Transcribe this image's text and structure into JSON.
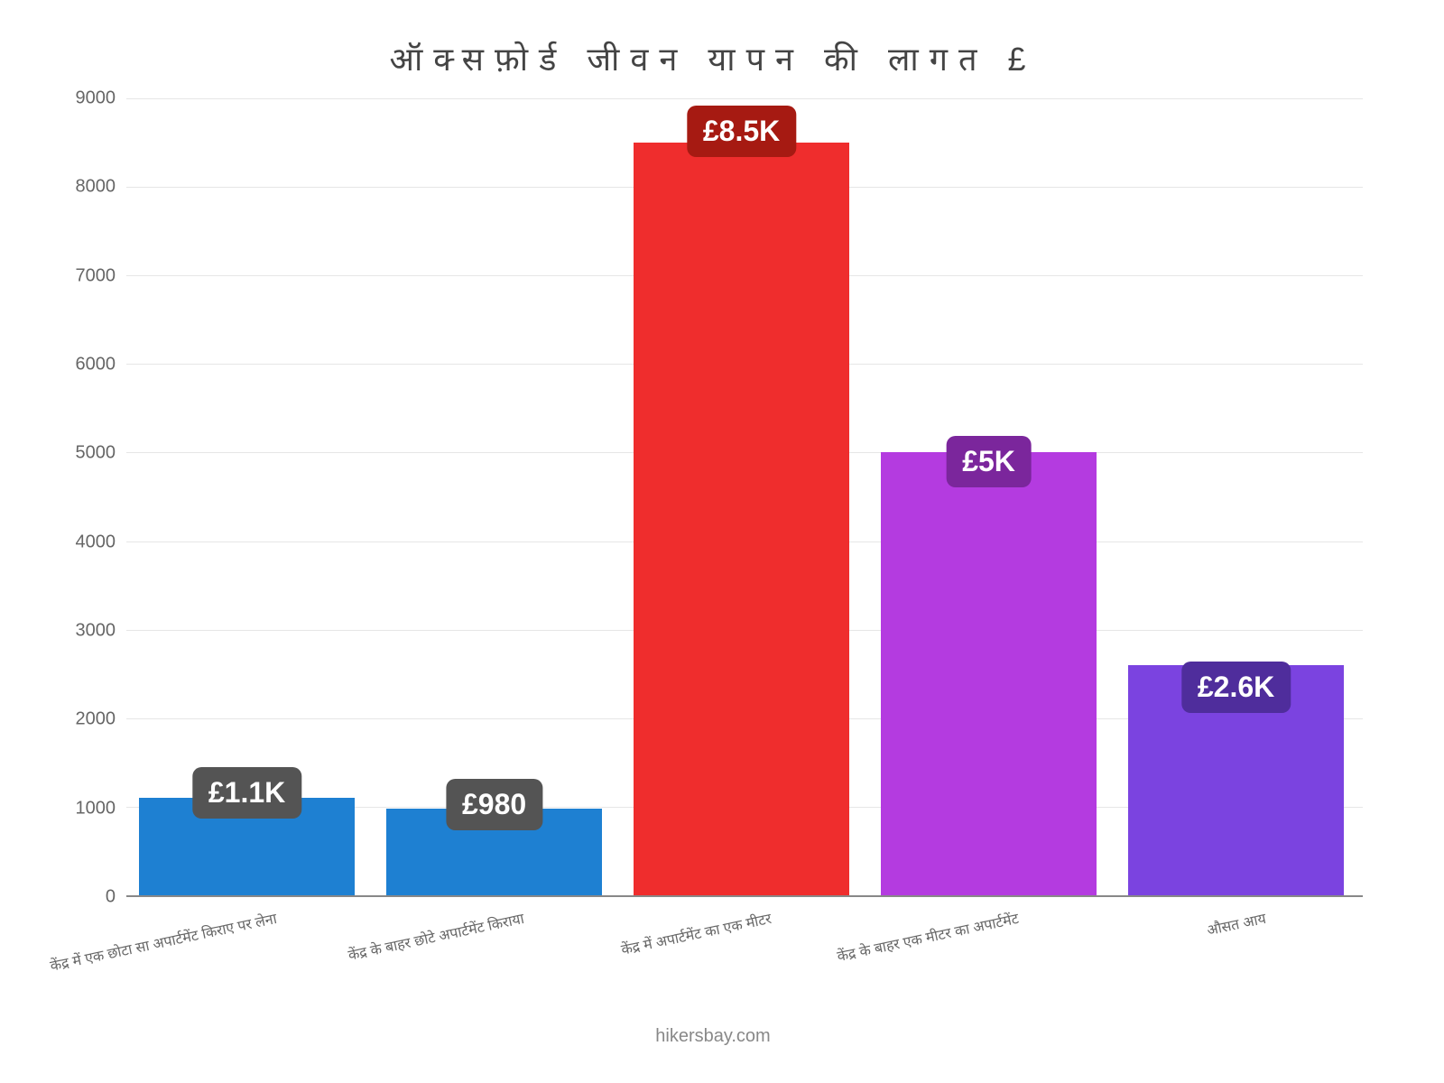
{
  "chart": {
    "type": "bar",
    "title": "ऑक्सफ़ोर्ड जीवन यापन की लागत £",
    "title_fontsize": 36,
    "title_color": "#444444",
    "background_color": "#ffffff",
    "grid_color": "#e6e6e6",
    "axis_text_color": "#666666",
    "source": "hikersbay.com",
    "y_axis": {
      "min": 0,
      "max": 9000,
      "tick_step": 1000,
      "ticks": [
        0,
        1000,
        2000,
        3000,
        4000,
        5000,
        6000,
        7000,
        8000,
        9000
      ],
      "label_fontsize": 20
    },
    "x_labels": [
      "केंद्र में एक छोटा सा अपार्टमेंट किराए पर लेना",
      "केंद्र के बाहर छोटे अपार्टमेंट किराया",
      "केंद्र में अपार्टमेंट का एक मीटर",
      "केंद्र के बाहर एक मीटर का अपार्टमेंट",
      "औसत आय"
    ],
    "x_label_fontsize": 16,
    "bars": [
      {
        "value": 1100,
        "display_label": "£1.1K",
        "color": "#1e80d2",
        "label_bg": "#545454"
      },
      {
        "value": 980,
        "display_label": "£980",
        "color": "#1e80d2",
        "label_bg": "#545454"
      },
      {
        "value": 8500,
        "display_label": "£8.5K",
        "color": "#ef2d2d",
        "label_bg": "#a61a12"
      },
      {
        "value": 5000,
        "display_label": "£5K",
        "color": "#b43be0",
        "label_bg": "#7b269c"
      },
      {
        "value": 2600,
        "display_label": "£2.6K",
        "color": "#7b43e0",
        "label_bg": "#4f2d9c"
      }
    ],
    "bar_value_fontsize": 32,
    "bar_value_color": "#ffffff",
    "bar_width_percent": 17.5,
    "bar_gap_percent": 2.5,
    "left_padding_percent": 1.0
  }
}
